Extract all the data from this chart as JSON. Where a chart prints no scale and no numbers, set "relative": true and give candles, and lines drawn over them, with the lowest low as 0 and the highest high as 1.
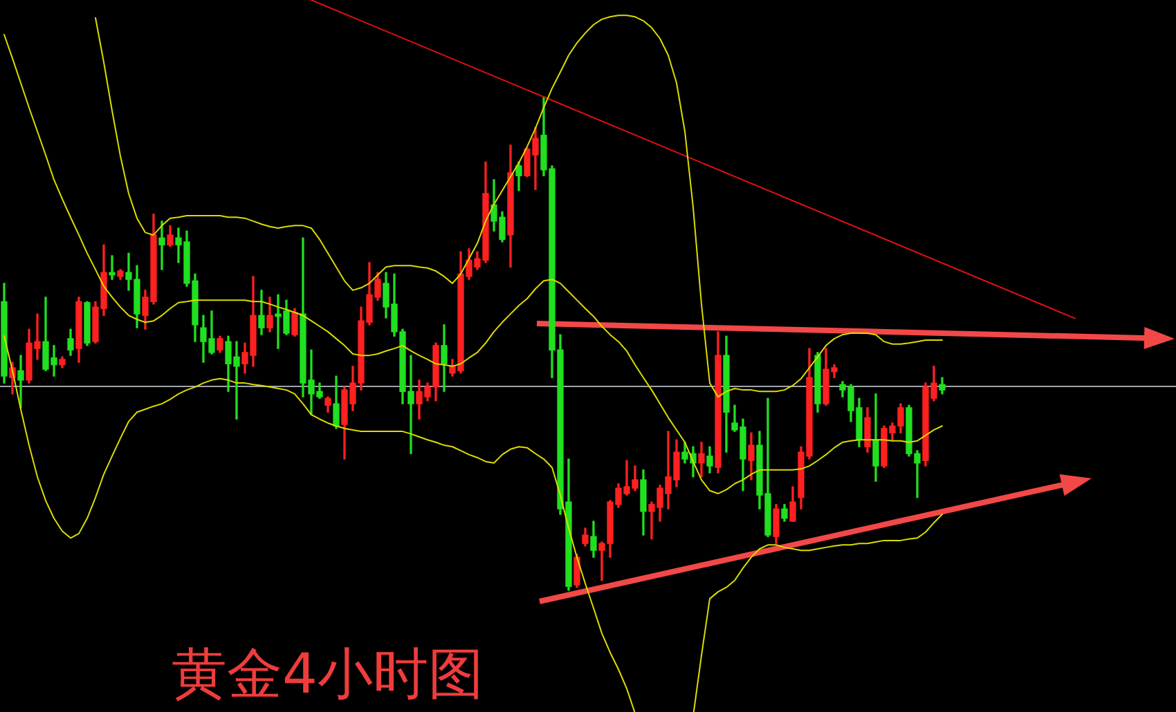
{
  "chart_data": {
    "type": "candlestick",
    "title": "黄金4小时图",
    "relative": true,
    "tick_labels": false,
    "categories": [
      null,
      null,
      null,
      null,
      null,
      null,
      null,
      null,
      null,
      null,
      null,
      null,
      null,
      null,
      null,
      null,
      null,
      null,
      null,
      null,
      null,
      null,
      null,
      null,
      null,
      null,
      null,
      null,
      null,
      null,
      null,
      null,
      null,
      null,
      null,
      null,
      null,
      null,
      null,
      null,
      null,
      null,
      null,
      null,
      null,
      null,
      null,
      null,
      null,
      null,
      null,
      null,
      null,
      null,
      null,
      null,
      null,
      null,
      null,
      null,
      null,
      null,
      null,
      null,
      null,
      null,
      null,
      null,
      null,
      null,
      null,
      null,
      null,
      null,
      null,
      null,
      null,
      null,
      null,
      null,
      null,
      null,
      null,
      null,
      null,
      null,
      null,
      null,
      null,
      null,
      null,
      null,
      null,
      null,
      null,
      null,
      null,
      null,
      null,
      null,
      null,
      null,
      null,
      null,
      null,
      null,
      null,
      null,
      null,
      null,
      null,
      null,
      null,
      null,
      null,
      null,
      null,
      null,
      null,
      null,
      null,
      null,
      null,
      null,
      null,
      null,
      null,
      null,
      null,
      null
    ],
    "ohlc": [
      [
        0.585,
        0.622,
        0.42,
        0.434
      ],
      [
        0.431,
        0.462,
        0.398,
        0.451
      ],
      [
        0.445,
        0.476,
        0.37,
        0.426
      ],
      [
        0.426,
        0.529,
        0.42,
        0.501
      ],
      [
        0.49,
        0.56,
        0.468,
        0.504
      ],
      [
        0.504,
        0.594,
        0.445,
        0.448
      ],
      [
        0.471,
        0.496,
        0.434,
        0.457
      ],
      [
        0.457,
        0.473,
        0.451,
        0.468
      ],
      [
        0.51,
        0.529,
        0.476,
        0.487
      ],
      [
        0.49,
        0.594,
        0.462,
        0.585
      ],
      [
        0.583,
        0.585,
        0.496,
        0.501
      ],
      [
        0.504,
        0.585,
        0.501,
        0.574
      ],
      [
        0.571,
        0.7,
        0.557,
        0.644
      ],
      [
        0.644,
        0.678,
        0.63,
        0.639
      ],
      [
        0.636,
        0.65,
        0.63,
        0.647
      ],
      [
        0.644,
        0.683,
        0.608,
        0.63
      ],
      [
        0.63,
        0.658,
        0.532,
        0.56
      ],
      [
        0.557,
        0.608,
        0.529,
        0.594
      ],
      [
        0.585,
        0.762,
        0.58,
        0.72
      ],
      [
        0.714,
        0.748,
        0.65,
        0.7
      ],
      [
        0.7,
        0.739,
        0.697,
        0.72
      ],
      [
        0.714,
        0.734,
        0.664,
        0.7
      ],
      [
        0.706,
        0.728,
        0.616,
        0.622
      ],
      [
        0.627,
        0.641,
        0.504,
        0.538
      ],
      [
        0.532,
        0.557,
        0.462,
        0.504
      ],
      [
        0.51,
        0.566,
        0.479,
        0.482
      ],
      [
        0.487,
        0.515,
        0.482,
        0.51
      ],
      [
        0.504,
        0.515,
        0.403,
        0.459
      ],
      [
        0.473,
        0.504,
        0.347,
        0.454
      ],
      [
        0.459,
        0.501,
        0.44,
        0.482
      ],
      [
        0.476,
        0.636,
        0.454,
        0.557
      ],
      [
        0.557,
        0.608,
        0.518,
        0.532
      ],
      [
        0.532,
        0.594,
        0.524,
        0.557
      ],
      [
        0.56,
        0.599,
        0.49,
        0.555
      ],
      [
        0.566,
        0.588,
        0.518,
        0.521
      ],
      [
        0.518,
        0.571,
        0.515,
        0.563
      ],
      [
        0.56,
        0.714,
        0.392,
        0.42
      ],
      [
        0.426,
        0.487,
        0.356,
        0.398
      ],
      [
        0.403,
        0.42,
        0.389,
        0.392
      ],
      [
        0.375,
        0.392,
        0.361,
        0.389
      ],
      [
        0.378,
        0.434,
        0.328,
        0.333
      ],
      [
        0.336,
        0.412,
        0.266,
        0.406
      ],
      [
        0.378,
        0.454,
        0.364,
        0.42
      ],
      [
        0.42,
        0.574,
        0.406,
        0.546
      ],
      [
        0.543,
        0.664,
        0.538,
        0.599
      ],
      [
        0.594,
        0.644,
        0.588,
        0.63
      ],
      [
        0.622,
        0.644,
        0.552,
        0.574
      ],
      [
        0.58,
        0.641,
        0.515,
        0.524
      ],
      [
        0.524,
        0.529,
        0.378,
        0.403
      ],
      [
        0.403,
        0.476,
        0.277,
        0.378
      ],
      [
        0.378,
        0.426,
        0.347,
        0.403
      ],
      [
        0.392,
        0.42,
        0.384,
        0.412
      ],
      [
        0.412,
        0.501,
        0.384,
        0.496
      ],
      [
        0.496,
        0.538,
        0.403,
        0.459
      ],
      [
        0.44,
        0.468,
        0.434,
        0.454
      ],
      [
        0.445,
        0.686,
        0.44,
        0.641
      ],
      [
        0.636,
        0.692,
        0.63,
        0.669
      ],
      [
        0.655,
        0.686,
        0.65,
        0.672
      ],
      [
        0.669,
        0.868,
        0.664,
        0.804
      ],
      [
        0.781,
        0.832,
        0.728,
        0.748
      ],
      [
        0.756,
        0.767,
        0.706,
        0.711
      ],
      [
        0.72,
        0.902,
        0.655,
        0.846
      ],
      [
        0.86,
        0.868,
        0.81,
        0.84
      ],
      [
        0.84,
        0.896,
        0.838,
        0.894
      ],
      [
        0.882,
        0.938,
        0.812,
        0.916
      ],
      [
        0.922,
        1,
        0.84,
        0.852
      ],
      [
        0.854,
        0.86,
        0.431,
        0.487
      ],
      [
        0.487,
        0.518,
        0.154,
        0.165
      ],
      [
        0.179,
        0.266,
        0,
        0.008
      ],
      [
        0.011,
        0.073,
        0.006,
        0.067
      ],
      [
        0.095,
        0.126,
        0.09,
        0.112
      ],
      [
        0.109,
        0.14,
        0.067,
        0.081
      ],
      [
        0.081,
        0.098,
        0.02,
        0.095
      ],
      [
        0.095,
        0.182,
        0.067,
        0.179
      ],
      [
        0.174,
        0.216,
        0.168,
        0.207
      ],
      [
        0.196,
        0.263,
        0.193,
        0.21
      ],
      [
        0.207,
        0.252,
        0.202,
        0.224
      ],
      [
        0.224,
        0.244,
        0.112,
        0.16
      ],
      [
        0.16,
        0.179,
        0.104,
        0.174
      ],
      [
        0.168,
        0.213,
        0.14,
        0.207
      ],
      [
        0.196,
        0.322,
        0.165,
        0.23
      ],
      [
        0.224,
        0.305,
        0.21,
        0.28
      ],
      [
        0.28,
        0.3,
        0.258,
        0.266
      ],
      [
        0.277,
        0.291,
        0.23,
        0.258
      ],
      [
        0.258,
        0.3,
        0.23,
        0.277
      ],
      [
        0.272,
        0.291,
        0.238,
        0.252
      ],
      [
        0.249,
        0.524,
        0.238,
        0.476
      ],
      [
        0.476,
        0.515,
        0.28,
        0.361
      ],
      [
        0.339,
        0.375,
        0.322,
        0.325
      ],
      [
        0.331,
        0.347,
        0.202,
        0.266
      ],
      [
        0.263,
        0.319,
        0.224,
        0.294
      ],
      [
        0.294,
        0.322,
        0.165,
        0.193
      ],
      [
        0.196,
        0.389,
        0.109,
        0.112
      ],
      [
        0.109,
        0.174,
        0.095,
        0.165
      ],
      [
        0.165,
        0.174,
        0.14,
        0.146
      ],
      [
        0.14,
        0.21,
        0.14,
        0.179
      ],
      [
        0.188,
        0.291,
        0.165,
        0.28
      ],
      [
        0.272,
        0.49,
        0.266,
        0.431
      ],
      [
        0.476,
        0.482,
        0.361,
        0.378
      ],
      [
        0.378,
        0.49,
        0.375,
        0.448
      ],
      [
        0.443,
        0.457,
        0.431,
        0.451
      ],
      [
        0.417,
        0.423,
        0.392,
        0.406
      ],
      [
        0.412,
        0.417,
        0.342,
        0.364
      ],
      [
        0.37,
        0.389,
        0.291,
        0.305
      ],
      [
        0.291,
        0.37,
        0.28,
        0.35
      ],
      [
        0.305,
        0.398,
        0.221,
        0.252
      ],
      [
        0.252,
        0.333,
        0.249,
        0.328
      ],
      [
        0.319,
        0.339,
        0.305,
        0.333
      ],
      [
        0.333,
        0.378,
        0.319,
        0.37
      ],
      [
        0.37,
        0.375,
        0.272,
        0.277
      ],
      [
        0.277,
        0.283,
        0.188,
        0.258
      ],
      [
        0.263,
        0.42,
        0.252,
        0.412
      ],
      [
        0.389,
        0.454,
        0.384,
        0.42
      ],
      [
        0.417,
        0.431,
        0.398,
        0.406
      ],
      null,
      null,
      null,
      null,
      null,
      null,
      null,
      null,
      null,
      null,
      null,
      null,
      null,
      null,
      null,
      null
    ],
    "colors": [
      "#20e020",
      "#ff2020",
      "#20e020",
      "#ff2020",
      "#ff2020",
      "#20e020",
      "#20e020",
      "#ff2020",
      "#20e020",
      "#ff2020",
      "#20e020",
      "#ff2020",
      "#ff2020",
      "#20e020",
      "#ff2020",
      "#20e020",
      "#20e020",
      "#ff2020",
      "#ff2020",
      "#20e020",
      "#ff2020",
      "#20e020",
      "#20e020",
      "#20e020",
      "#20e020",
      "#20e020",
      "#ff2020",
      "#20e020",
      "#20e020",
      "#ff2020",
      "#ff2020",
      "#20e020",
      "#ff2020",
      "#20e020",
      "#20e020",
      "#ff2020",
      "#20e020",
      "#20e020",
      "#20e020",
      "#ff2020",
      "#20e020",
      "#ff2020",
      "#ff2020",
      "#ff2020",
      "#ff2020",
      "#ff2020",
      "#20e020",
      "#20e020",
      "#20e020",
      "#20e020",
      "#ff2020",
      "#ff2020",
      "#ff2020",
      "#20e020",
      "#ff2020",
      "#ff2020",
      "#ff2020",
      "#ff2020",
      "#ff2020",
      "#20e020",
      "#20e020",
      "#ff2020",
      "#20e020",
      "#ff2020",
      "#ff2020",
      "#20e020",
      "#20e020",
      "#20e020",
      "#20e020",
      "#ff2020",
      "#ff2020",
      "#20e020",
      "#ff2020",
      "#ff2020",
      "#ff2020",
      "#ff2020",
      "#ff2020",
      "#20e020",
      "#ff2020",
      "#ff2020",
      "#ff2020",
      "#ff2020",
      "#20e020",
      "#20e020",
      "#ff2020",
      "#20e020",
      "#ff2020",
      "#20e020",
      "#20e020",
      "#20e020",
      "#ff2020",
      "#20e020",
      "#20e020",
      "#ff2020",
      "#20e020",
      "#ff2020",
      "#ff2020",
      "#ff2020",
      "#20e020",
      "#ff2020",
      "#ff2020",
      "#20e020",
      "#20e020",
      "#20e020",
      "#ff2020",
      "#20e020",
      "#ff2020",
      "#ff2020",
      "#ff2020",
      "#20e020",
      "#20e020",
      "#ff2020",
      "#ff2020",
      "#20e020",
      null,
      null,
      null,
      null,
      null,
      null,
      null,
      null,
      null,
      null,
      null,
      null,
      null,
      null,
      null,
      null
    ],
    "series": [
      {
        "type": "line",
        "color": "#dcdc00",
        "values": [
          1.126,
          1.078,
          1.028,
          0.978,
          0.93,
          0.882,
          0.832,
          0.793,
          0.756,
          0.72,
          0.683,
          0.65,
          0.616,
          0.594,
          0.574,
          0.557,
          0.549,
          0.543,
          0.546,
          0.557,
          0.571,
          0.583,
          0.585,
          0.588,
          0.588,
          0.588,
          0.588,
          0.588,
          0.588,
          0.588,
          0.585,
          0.585,
          0.58,
          0.574,
          0.569,
          0.563,
          0.557,
          0.546,
          0.535,
          0.524,
          0.51,
          0.496,
          0.479,
          0.476,
          0.476,
          0.479,
          0.485,
          0.49,
          0.496,
          0.485,
          0.476,
          0.468,
          0.459,
          0.457,
          0.454,
          0.459,
          0.471,
          0.482,
          0.501,
          0.524,
          0.543,
          0.56,
          0.577,
          0.591,
          0.611,
          0.627,
          0.63,
          0.622,
          0.605,
          0.588,
          0.571,
          0.555,
          0.535,
          0.518,
          0.504,
          0.485,
          0.457,
          0.431,
          0.406,
          0.378,
          0.35,
          0.325,
          0.3,
          0.261,
          0.224,
          0.202,
          0.196,
          0.204,
          0.216,
          0.224,
          0.235,
          0.244,
          0.244,
          0.244,
          0.244,
          0.244,
          0.246,
          0.252,
          0.263,
          0.275,
          0.289,
          0.3,
          0.303,
          0.305,
          0.305,
          0.305,
          0.305,
          0.303,
          0.303,
          0.3,
          0.303,
          0.314,
          0.325,
          0.333,
          null,
          null,
          null,
          null,
          null,
          null,
          null,
          null,
          null,
          null,
          null,
          null,
          null,
          null,
          null,
          null
        ]
      },
      {
        "type": "line",
        "color": "#dcdc00",
        "values": [
          null,
          null,
          null,
          null,
          null,
          null,
          null,
          null,
          null,
          null,
          null,
          1.16,
          1.07,
          0.972,
          0.88,
          0.804,
          0.754,
          0.725,
          0.72,
          0.739,
          0.754,
          0.756,
          0.759,
          0.759,
          0.759,
          0.759,
          0.759,
          0.756,
          0.756,
          0.754,
          0.748,
          0.742,
          0.737,
          0.734,
          0.737,
          0.739,
          0.739,
          0.734,
          0.711,
          0.683,
          0.655,
          0.627,
          0.608,
          0.613,
          0.622,
          0.639,
          0.655,
          0.658,
          0.658,
          0.658,
          0.655,
          0.653,
          0.647,
          0.636,
          0.622,
          0.641,
          0.672,
          0.703,
          0.748,
          0.782,
          0.81,
          0.838,
          0.866,
          0.899,
          0.936,
          0.978,
          1.017,
          1.05,
          1.084,
          1.109,
          1.129,
          1.146,
          1.157,
          1.162,
          1.165,
          1.165,
          1.162,
          1.154,
          1.14,
          1.118,
          1.084,
          1.028,
          0.93,
          0.776,
          0.58,
          0.42,
          0.392,
          0.403,
          0.409,
          0.406,
          0.406,
          0.403,
          0.403,
          0.403,
          0.406,
          0.415,
          0.429,
          0.451,
          0.473,
          0.496,
          0.51,
          0.518,
          0.521,
          0.521,
          0.521,
          0.518,
          0.504,
          0.499,
          0.499,
          0.501,
          0.504,
          0.507,
          0.507,
          0.507,
          null,
          null,
          null,
          null,
          null,
          null,
          null,
          null,
          null,
          null,
          null,
          null,
          null,
          null,
          null,
          null
        ]
      },
      {
        "type": "line",
        "color": "#dcdc00",
        "values": [
          0.515,
          0.445,
          0.367,
          0.294,
          0.23,
          0.182,
          0.146,
          0.12,
          0.106,
          0.115,
          0.146,
          0.188,
          0.235,
          0.272,
          0.308,
          0.342,
          0.361,
          0.367,
          0.373,
          0.378,
          0.387,
          0.398,
          0.406,
          0.412,
          0.42,
          0.426,
          0.429,
          0.426,
          0.42,
          0.42,
          0.417,
          0.415,
          0.412,
          0.409,
          0.406,
          0.398,
          0.378,
          0.356,
          0.347,
          0.339,
          0.333,
          0.328,
          0.325,
          0.322,
          0.322,
          0.322,
          0.322,
          0.322,
          0.322,
          0.317,
          0.311,
          0.305,
          0.3,
          0.294,
          0.291,
          0.283,
          0.275,
          0.269,
          0.261,
          0.258,
          0.275,
          0.286,
          0.291,
          0.289,
          0.277,
          0.266,
          0.249,
          0.193,
          0.126,
          0.067,
          0.014,
          -0.036,
          -0.087,
          -0.126,
          -0.16,
          -0.199,
          -0.249,
          null,
          null,
          null,
          null,
          null,
          null,
          -0.255,
          -0.132,
          -0.017,
          -0.003,
          0.006,
          0.02,
          0.045,
          0.067,
          0.084,
          0.092,
          0.092,
          0.087,
          0.084,
          0.081,
          0.081,
          0.084,
          0.087,
          0.09,
          0.092,
          0.092,
          0.095,
          0.095,
          0.098,
          0.101,
          0.101,
          0.101,
          0.104,
          0.106,
          0.118,
          0.137,
          0.154,
          null,
          null,
          null,
          null,
          null,
          null,
          null,
          null,
          null,
          null,
          null,
          null,
          null,
          null,
          null,
          null
        ]
      },
      {
        "type": "line",
        "color": "#dd1111",
        "values": [
          null,
          null,
          null,
          null,
          null,
          null,
          null,
          null,
          null,
          null,
          null,
          null,
          null,
          null,
          null,
          null,
          null,
          null,
          null,
          null,
          null,
          null,
          null,
          null,
          null,
          null,
          null,
          null,
          null,
          null,
          null,
          null,
          null,
          null,
          null,
          null,
          null,
          1.196,
          null,
          null,
          null,
          null,
          null,
          null,
          null,
          null,
          null,
          null,
          null,
          null,
          null,
          null,
          null,
          null,
          null,
          null,
          null,
          null,
          null,
          null,
          null,
          null,
          null,
          null,
          null,
          null,
          null,
          null,
          null,
          null,
          null,
          null,
          null,
          null,
          null,
          null,
          null,
          null,
          null,
          null,
          null,
          null,
          null,
          null,
          null,
          null,
          null,
          null,
          null,
          null,
          null,
          null,
          null,
          null,
          null,
          null,
          null,
          null,
          null,
          null,
          null,
          null,
          null,
          null,
          null,
          null,
          null,
          null,
          null,
          null,
          null,
          null,
          null,
          null,
          null,
          null,
          null,
          null,
          null,
          null,
          null,
          null,
          null,
          null,
          null,
          null,
          null,
          null,
          null,
          0.551
        ]
      }
    ],
    "ref_lines": [
      {
        "axis": "y",
        "value": 0.415,
        "color": "#a0a4ac"
      }
    ]
  }
}
